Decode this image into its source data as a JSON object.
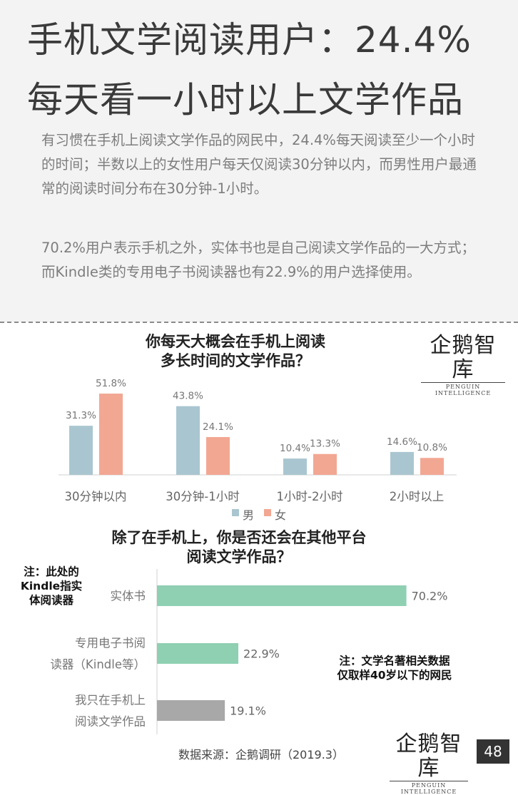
{
  "header": {
    "title_line1": "手机文学阅读用户：24.4%",
    "title_line2": "每天看一小时以上文学作品",
    "paragraph1": "有习惯在手机上阅读文学作品的网民中，24.4%每天阅读至少一个小时的时间；半数以上的女性用户每天仅阅读30分钟以内，而男性用户最通常的阅读时间分布在30分钟-1小时。",
    "paragraph2": "70.2%用户表示手机之外，实体书也是自己阅读文学作品的一大方式；而Kindle类的专用电子书阅读器也有22.9%的用户选择使用。"
  },
  "logo": {
    "main": "企鹅智库",
    "sub": "PENGUIN INTELLIGENCE"
  },
  "notes": {
    "kindle_note": "注：此处的Kindle指实体阅读器",
    "sample_note": "注：文学名著相关数据仅取样40岁以下的网民"
  },
  "footer": {
    "source": "数据来源：企鹅调研（2019.3）",
    "page": "48"
  },
  "colors": {
    "male": "#a9c6d0",
    "female": "#f2a793",
    "green": "#8fcfb2",
    "gray": "#a8a8a8"
  },
  "chart_data": [
    {
      "type": "bar",
      "title": "你每天大概会在手机上阅读多长时间的文学作品？",
      "title_lines": [
        "你每天大概会在手机上阅读",
        "多长时间的文学作品？"
      ],
      "categories": [
        "30分钟以内",
        "30分钟-1小时",
        "1小时-2小时",
        "2小时以上"
      ],
      "series": [
        {
          "name": "男",
          "values": [
            31.3,
            43.8,
            10.4,
            14.6
          ],
          "color": "#a9c6d0"
        },
        {
          "name": "女",
          "values": [
            51.8,
            24.1,
            13.3,
            10.8
          ],
          "color": "#f2a793"
        }
      ],
      "unit": "%",
      "legend": "bottom",
      "grid": false
    },
    {
      "type": "bar",
      "orientation": "horizontal",
      "title": "除了在手机上，你是否还会在其他平台阅读文学作品？",
      "title_lines": [
        "除了在手机上，你是否还会在其他平台",
        "阅读文学作品？"
      ],
      "categories": [
        [
          "实体书"
        ],
        [
          "专用电子书阅",
          "读器（Kindle等）"
        ],
        [
          "我只在手机上",
          "阅读文学作品"
        ]
      ],
      "values": [
        70.2,
        22.9,
        19.1
      ],
      "colors": [
        "#8fcfb2",
        "#8fcfb2",
        "#a8a8a8"
      ],
      "unit": "%",
      "grid": false
    }
  ]
}
